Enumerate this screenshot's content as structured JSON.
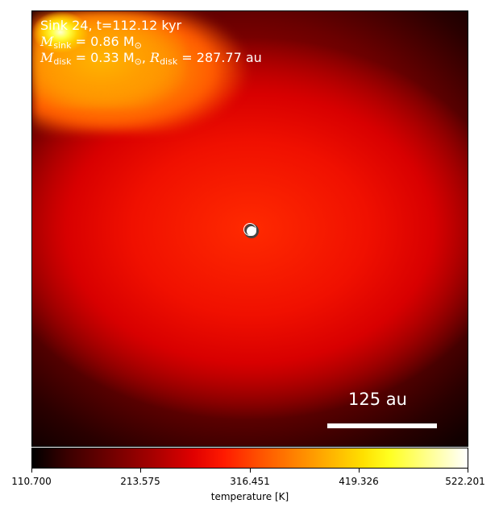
{
  "overlay": {
    "title": "Sink 24, t=112.12 kyr",
    "msink_symbol": "M",
    "msink_sub": "sink",
    "msink_value": " = 0.86 M",
    "msink_unit_sub": "⊙",
    "mdisk_symbol": "M",
    "mdisk_sub": "disk",
    "mdisk_value": " = 0.33 M",
    "mdisk_unit_sub": "⊙",
    "rdisk_sep": ", ",
    "rdisk_symbol": "R",
    "rdisk_sub": "disk",
    "rdisk_value": " = 287.77 au"
  },
  "scale_bar": {
    "label": "125 au"
  },
  "colorbar": {
    "label": "temperature [K]",
    "ticks": [
      "110.700",
      "213.575",
      "316.451",
      "419.326",
      "522.201"
    ],
    "colormap": "hot",
    "min": 110.7,
    "max": 522.201
  },
  "colors": {
    "text_on_map": "#ffffff",
    "sink_marker": "#444444"
  }
}
